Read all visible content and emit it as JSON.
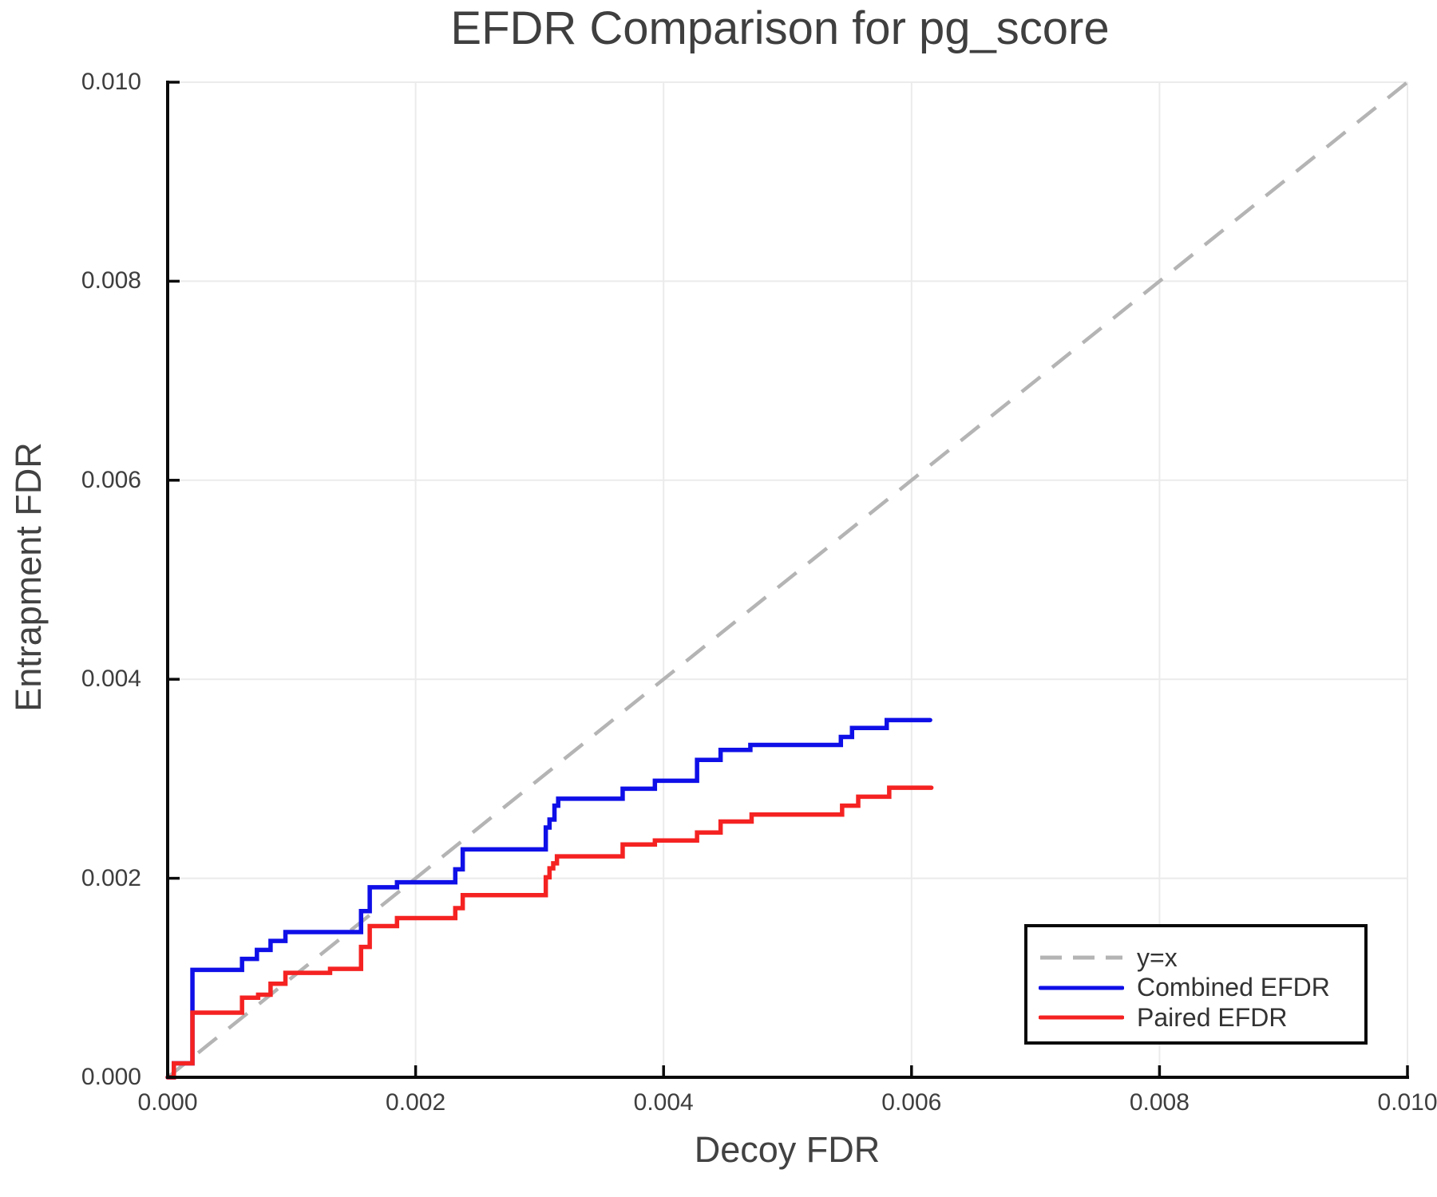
{
  "title": "EFDR Comparison for pg_score",
  "axes": {
    "xlabel": "Decoy FDR",
    "ylabel": "Entrapment FDR",
    "xtick_values": [
      0,
      0.002,
      0.004,
      0.006,
      0.008,
      0.01
    ],
    "xtick_labels": [
      "0.000",
      "0.002",
      "0.004",
      "0.006",
      "0.008",
      "0.010"
    ],
    "ytick_values": [
      0,
      0.002,
      0.004,
      0.006,
      0.008,
      0.01
    ],
    "ytick_labels": [
      "0.000",
      "0.002",
      "0.004",
      "0.006",
      "0.008",
      "0.010"
    ]
  },
  "legend": {
    "position": "lower-right",
    "items": [
      {
        "label": "y=x",
        "color": "#b4b4b4",
        "dashed": true
      },
      {
        "label": "Combined EFDR",
        "color": "#0f0fe8",
        "dashed": false
      },
      {
        "label": "Paired EFDR",
        "color": "#f52222",
        "dashed": false
      }
    ]
  },
  "chart_data": {
    "type": "line",
    "title": "EFDR Comparison for pg_score",
    "xlabel": "Decoy FDR",
    "ylabel": "Entrapment FDR",
    "xlim": [
      0,
      0.01
    ],
    "ylim": [
      0,
      0.01
    ],
    "grid": true,
    "legend_position": "lower right",
    "series": [
      {
        "name": "y=x",
        "style": "dashed",
        "step": false,
        "color": "#b4b4b4",
        "points": [
          [
            0,
            0
          ],
          [
            0.01,
            0.01
          ]
        ]
      },
      {
        "name": "Combined EFDR",
        "style": "solid",
        "step": true,
        "color": "#0f0fe8",
        "points": [
          [
            0,
            0
          ],
          [
            5e-05,
            0.00014
          ],
          [
            0.0002,
            0.00108
          ],
          [
            0.0006,
            0.00119
          ],
          [
            0.00072,
            0.00128
          ],
          [
            0.00083,
            0.00137
          ],
          [
            0.00095,
            0.00146
          ],
          [
            0.00156,
            0.00167
          ],
          [
            0.00163,
            0.00191
          ],
          [
            0.00185,
            0.00196
          ],
          [
            0.00232,
            0.00209
          ],
          [
            0.00238,
            0.00229
          ],
          [
            0.00305,
            0.00251
          ],
          [
            0.00308,
            0.00259
          ],
          [
            0.00312,
            0.00273
          ],
          [
            0.00315,
            0.0028
          ],
          [
            0.00367,
            0.0029
          ],
          [
            0.00393,
            0.00298
          ],
          [
            0.00427,
            0.00319
          ],
          [
            0.00446,
            0.00329
          ],
          [
            0.0047,
            0.00334
          ],
          [
            0.00543,
            0.00342
          ],
          [
            0.00552,
            0.00351
          ],
          [
            0.0058,
            0.00359
          ],
          [
            0.00615,
            0.00359
          ]
        ]
      },
      {
        "name": "Paired EFDR",
        "style": "solid",
        "step": true,
        "color": "#f52222",
        "points": [
          [
            0,
            0
          ],
          [
            5e-05,
            0.00014
          ],
          [
            0.0002,
            0.00065
          ],
          [
            0.0006,
            0.0008
          ],
          [
            0.00073,
            0.00083
          ],
          [
            0.00083,
            0.00094
          ],
          [
            0.00095,
            0.00105
          ],
          [
            0.00131,
            0.00109
          ],
          [
            0.00156,
            0.00131
          ],
          [
            0.00163,
            0.00152
          ],
          [
            0.00185,
            0.0016
          ],
          [
            0.00232,
            0.0017
          ],
          [
            0.00238,
            0.00183
          ],
          [
            0.00305,
            0.00201
          ],
          [
            0.00308,
            0.0021
          ],
          [
            0.00311,
            0.00215
          ],
          [
            0.00314,
            0.00222
          ],
          [
            0.00367,
            0.00234
          ],
          [
            0.00393,
            0.00238
          ],
          [
            0.00427,
            0.00246
          ],
          [
            0.00446,
            0.00257
          ],
          [
            0.00471,
            0.00264
          ],
          [
            0.00544,
            0.00273
          ],
          [
            0.00557,
            0.00282
          ],
          [
            0.00582,
            0.00291
          ],
          [
            0.00616,
            0.00291
          ]
        ]
      }
    ]
  }
}
